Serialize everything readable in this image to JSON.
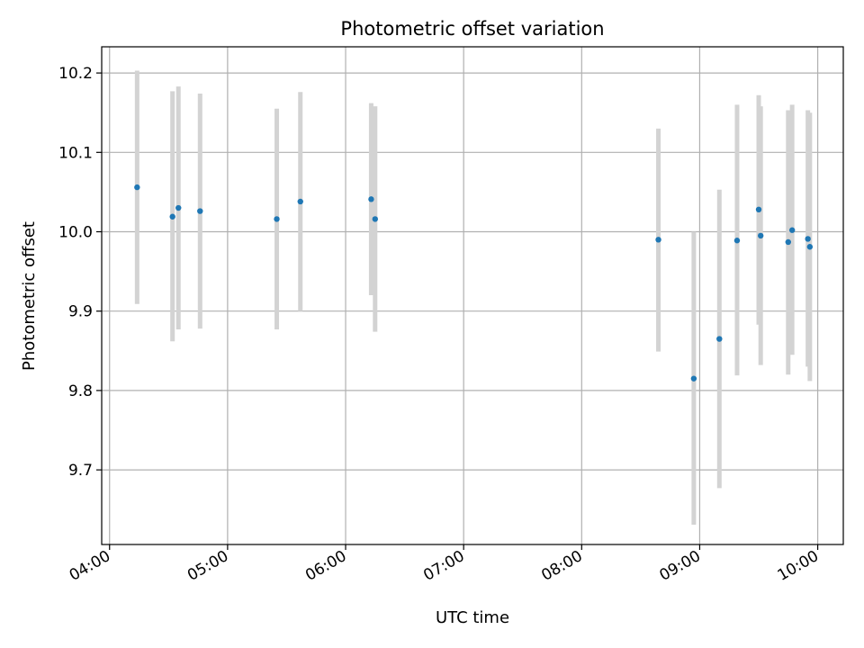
{
  "chart_data": {
    "type": "scatter",
    "title": "Photometric offset variation",
    "xlabel": "UTC time",
    "ylabel": "Photometric offset",
    "x_ticks": [
      "04:00",
      "05:00",
      "06:00",
      "07:00",
      "08:00",
      "09:00",
      "10:00"
    ],
    "y_ticks": [
      "9.7",
      "9.8",
      "9.9",
      "10.0",
      "10.1",
      "10.2"
    ],
    "xlim": [
      "03:56",
      "10:13"
    ],
    "ylim": [
      9.606,
      10.233
    ],
    "grid": true,
    "marker_color": "#1f77b4",
    "errorbar_color": "#d3d3d3",
    "points": [
      {
        "time": "04:14",
        "value": 10.056,
        "err_low": 9.909,
        "err_high": 10.203
      },
      {
        "time": "04:32",
        "value": 10.019,
        "err_low": 9.862,
        "err_high": 10.177
      },
      {
        "time": "04:35",
        "value": 10.03,
        "err_low": 9.877,
        "err_high": 10.183
      },
      {
        "time": "04:46",
        "value": 10.026,
        "err_low": 9.878,
        "err_high": 10.174
      },
      {
        "time": "05:25",
        "value": 10.016,
        "err_low": 9.877,
        "err_high": 10.155
      },
      {
        "time": "05:37",
        "value": 10.038,
        "err_low": 9.9,
        "err_high": 10.176
      },
      {
        "time": "06:13",
        "value": 10.041,
        "err_low": 9.92,
        "err_high": 10.162
      },
      {
        "time": "06:15",
        "value": 10.016,
        "err_low": 9.874,
        "err_high": 10.158
      },
      {
        "time": "08:39",
        "value": 9.99,
        "err_low": 9.849,
        "err_high": 10.13
      },
      {
        "time": "08:57",
        "value": 9.815,
        "err_low": 9.631,
        "err_high": 10.0
      },
      {
        "time": "09:10",
        "value": 9.865,
        "err_low": 9.677,
        "err_high": 10.053
      },
      {
        "time": "09:19",
        "value": 9.989,
        "err_low": 9.819,
        "err_high": 10.16
      },
      {
        "time": "09:30",
        "value": 10.028,
        "err_low": 9.883,
        "err_high": 10.172
      },
      {
        "time": "09:31",
        "value": 9.995,
        "err_low": 9.832,
        "err_high": 10.158
      },
      {
        "time": "09:45",
        "value": 9.987,
        "err_low": 9.82,
        "err_high": 10.153
      },
      {
        "time": "09:47",
        "value": 10.002,
        "err_low": 9.845,
        "err_high": 10.16
      },
      {
        "time": "09:55",
        "value": 9.991,
        "err_low": 9.83,
        "err_high": 10.153
      },
      {
        "time": "09:56",
        "value": 9.981,
        "err_low": 9.812,
        "err_high": 10.15
      }
    ]
  }
}
